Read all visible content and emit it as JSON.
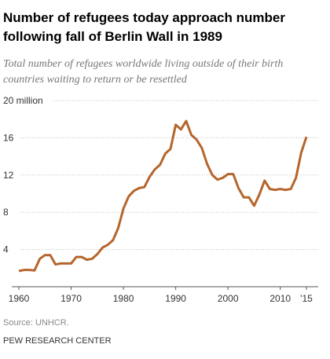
{
  "chart_data": {
    "type": "line",
    "title": [
      "Number of refugees today approach number",
      "following fall of Berlin Wall in 1989"
    ],
    "subtitle": [
      "Total number of refugees worldwide living outside of their birth",
      "countries waiting to return or be resettled"
    ],
    "x": [
      1960,
      1961,
      1962,
      1963,
      1964,
      1965,
      1966,
      1967,
      1968,
      1969,
      1970,
      1971,
      1972,
      1973,
      1974,
      1975,
      1976,
      1977,
      1978,
      1979,
      1980,
      1981,
      1982,
      1983,
      1984,
      1985,
      1986,
      1987,
      1988,
      1989,
      1990,
      1991,
      1992,
      1993,
      1994,
      1995,
      1996,
      1997,
      1998,
      1999,
      2000,
      2001,
      2002,
      2003,
      2004,
      2005,
      2006,
      2007,
      2008,
      2009,
      2010,
      2011,
      2012,
      2013,
      2014,
      2015
    ],
    "series": [
      {
        "color": "#b5652b",
        "values": [
          1.7,
          1.8,
          1.8,
          1.75,
          3.0,
          3.4,
          3.4,
          2.4,
          2.5,
          2.5,
          2.5,
          3.2,
          3.2,
          2.9,
          3.0,
          3.5,
          4.2,
          4.5,
          5.0,
          6.3,
          8.4,
          9.7,
          10.3,
          10.6,
          10.7,
          11.8,
          12.6,
          13.1,
          14.3,
          14.8,
          17.4,
          16.9,
          17.8,
          16.3,
          15.8,
          14.9,
          13.2,
          12.0,
          11.5,
          11.7,
          12.1,
          12.1,
          10.6,
          9.6,
          9.6,
          8.7,
          9.9,
          11.4,
          10.5,
          10.4,
          10.5,
          10.4,
          10.5,
          11.7,
          14.4,
          16.1
        ]
      }
    ],
    "xlim": [
      1960,
      2015
    ],
    "xticks": [
      1960,
      1970,
      1980,
      1990,
      2000,
      2010,
      {
        "value": 2015,
        "label": "'15"
      }
    ],
    "ylim": [
      0,
      20
    ],
    "yticks": [
      4,
      8,
      12,
      16,
      {
        "value": 20,
        "label": "20 million"
      }
    ],
    "grid": true,
    "source": "Source: UNHCR.",
    "credit": "PEW RESEARCH CENTER"
  }
}
